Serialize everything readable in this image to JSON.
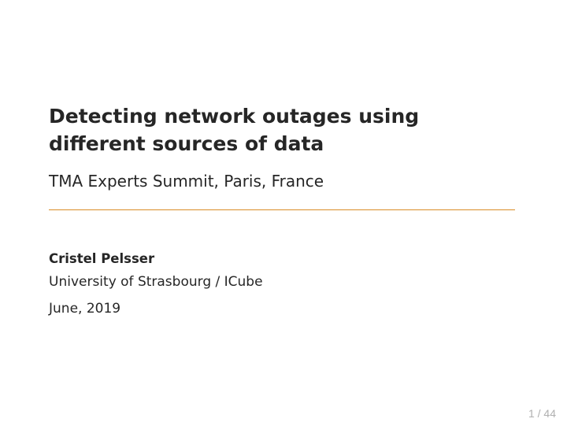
{
  "title": "Detecting network outages using different sources of data",
  "subtitle": "TMA Experts Summit, Paris, France",
  "author": "Cristel Pelsser",
  "affiliation": "University of Strasbourg / ICube",
  "date": "June, 2019",
  "page": {
    "current": "1",
    "sep": " / ",
    "total": "44"
  },
  "colors": {
    "rule": "#d98c26",
    "text": "#262626",
    "page_number": "#b0b0b0",
    "background": "#ffffff"
  }
}
